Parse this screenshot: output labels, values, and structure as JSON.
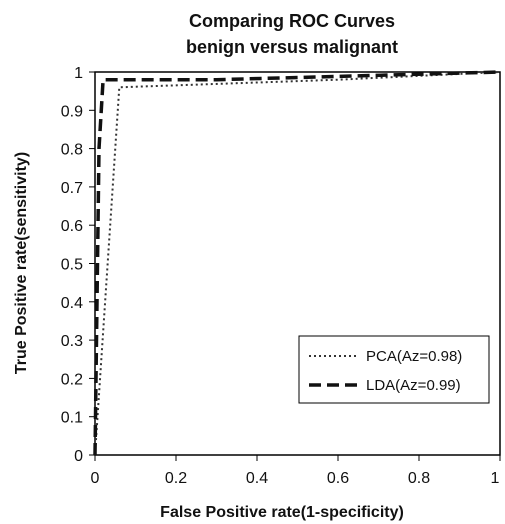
{
  "chart_data": {
    "type": "line",
    "title": [
      "Comparing ROC Curves",
      "benign versus malignant"
    ],
    "xlabel": "False Positive rate(1-specificity)",
    "ylabel": "True Positive rate(sensitivity)",
    "xlim": [
      0,
      1
    ],
    "ylim": [
      0,
      1
    ],
    "x_ticks": [
      "0",
      "0.2",
      "0.4",
      "0.6",
      "0.8",
      "1"
    ],
    "y_ticks": [
      "0",
      "0.1",
      "0.2",
      "0.3",
      "0.4",
      "0.5",
      "0.6",
      "0.7",
      "0.8",
      "0.9",
      "1"
    ],
    "grid": false,
    "legend_position": "bottom-right",
    "series": [
      {
        "name": "PCA(Az=0.98)",
        "style": "dotted",
        "color": "#333333",
        "points": [
          [
            0,
            0
          ],
          [
            0.06,
            0.96
          ],
          [
            0.6,
            0.98
          ],
          [
            1,
            1
          ]
        ]
      },
      {
        "name": "LDA(Az=0.99)",
        "style": "dashed",
        "color": "#111111",
        "points": [
          [
            0,
            0
          ],
          [
            0.01,
            0.8
          ],
          [
            0.02,
            0.98
          ],
          [
            0.3,
            0.98
          ],
          [
            1,
            1
          ]
        ]
      }
    ]
  }
}
